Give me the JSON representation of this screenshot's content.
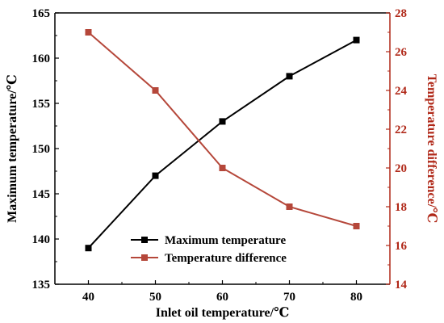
{
  "chart_data": {
    "type": "line",
    "xlabel": "Inlet oil temperature/℃",
    "ylabel_left": "Maximum temperature/℃",
    "ylabel_right": "Temperature difference/℃",
    "x": [
      40,
      50,
      60,
      70,
      80
    ],
    "xticks": [
      40,
      50,
      60,
      70,
      80
    ],
    "xlim": [
      35,
      85
    ],
    "ylim_left": [
      135,
      165
    ],
    "yticks_left": [
      135,
      140,
      145,
      150,
      155,
      160,
      165
    ],
    "ylim_right": [
      14,
      28
    ],
    "yticks_right": [
      14,
      16,
      18,
      20,
      22,
      24,
      26,
      28
    ],
    "grid": false,
    "legend_position": "bottom-center",
    "series": [
      {
        "name": "Maximum temperature",
        "axis": "left",
        "color": "#000000",
        "marker": "square",
        "values": [
          139,
          147,
          153,
          158,
          162
        ]
      },
      {
        "name": "Temperature difference",
        "axis": "right",
        "color": "#b5473a",
        "marker": "square",
        "values": [
          27,
          24,
          20,
          18,
          17
        ]
      }
    ],
    "right_axis_color": "#b02818"
  }
}
